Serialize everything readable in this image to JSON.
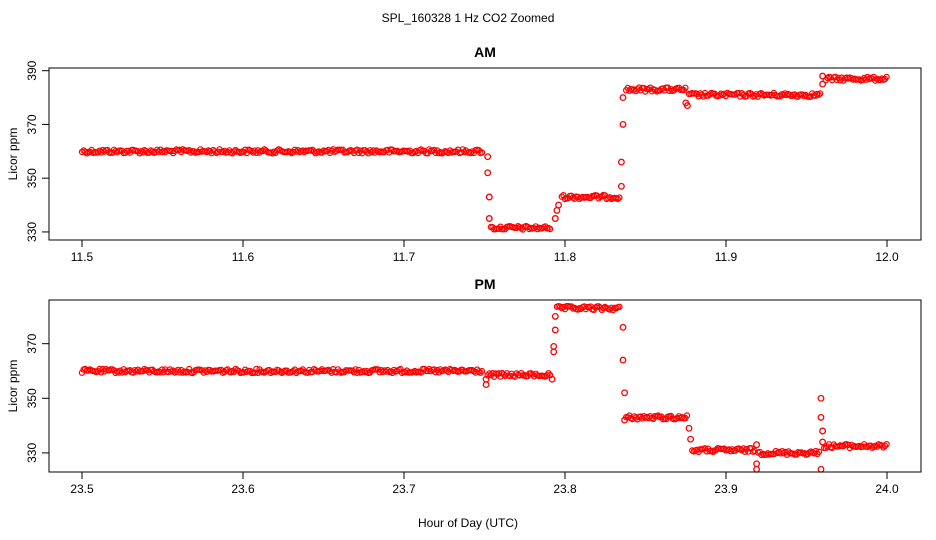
{
  "figure": {
    "title": "SPL_160328  1 Hz CO2 Zoomed",
    "xlabel": "Hour of Day (UTC)"
  },
  "chart_data": [
    {
      "type": "scatter",
      "panel": "AM",
      "title": "AM",
      "ylabel": "Licor ppm",
      "xlim": [
        11.5,
        12.0
      ],
      "ylim": [
        327,
        391
      ],
      "xticks": [
        "11.5",
        "11.6",
        "11.7",
        "11.8",
        "11.9",
        "12.0"
      ],
      "yticks": [
        "330",
        "350",
        "370",
        "390"
      ],
      "color": "#ff0000",
      "segments": [
        {
          "x": [
            11.5,
            11.749
          ],
          "y": 360
        },
        {
          "x": [
            11.754,
            11.791
          ],
          "y": 331.5
        },
        {
          "x": [
            11.798,
            11.834
          ],
          "y": 343
        },
        {
          "x": [
            11.838,
            11.875
          ],
          "y": 383
        },
        {
          "x": [
            11.877,
            11.959
          ],
          "y": 381
        },
        {
          "x": [
            11.962,
            12.0
          ],
          "y": 387
        }
      ],
      "transition_points": [
        {
          "x": 11.752,
          "y": 358
        },
        {
          "x": 11.752,
          "y": 352
        },
        {
          "x": 11.753,
          "y": 343
        },
        {
          "x": 11.753,
          "y": 335
        },
        {
          "x": 11.794,
          "y": 335
        },
        {
          "x": 11.795,
          "y": 338
        },
        {
          "x": 11.796,
          "y": 340
        },
        {
          "x": 11.835,
          "y": 347
        },
        {
          "x": 11.835,
          "y": 356
        },
        {
          "x": 11.836,
          "y": 370
        },
        {
          "x": 11.836,
          "y": 380
        },
        {
          "x": 11.875,
          "y": 378
        },
        {
          "x": 11.876,
          "y": 377
        },
        {
          "x": 11.96,
          "y": 385
        },
        {
          "x": 11.96,
          "y": 388
        }
      ]
    },
    {
      "type": "scatter",
      "panel": "PM",
      "title": "PM",
      "ylabel": "Licor ppm",
      "xlim": [
        23.5,
        24.0
      ],
      "ylim": [
        323,
        386
      ],
      "xticks": [
        "23.5",
        "23.6",
        "23.7",
        "23.8",
        "23.9",
        "24.0"
      ],
      "yticks": [
        "330",
        "350",
        "370"
      ],
      "color": "#ff0000",
      "segments": [
        {
          "x": [
            23.5,
            23.749
          ],
          "y": 360
        },
        {
          "x": [
            23.752,
            23.791
          ],
          "y": 358.5
        },
        {
          "x": [
            23.795,
            23.834
          ],
          "y": 383
        },
        {
          "x": [
            23.838,
            23.876
          ],
          "y": 343
        },
        {
          "x": [
            23.879,
            23.918
          ],
          "y": 331
        },
        {
          "x": [
            23.92,
            23.958
          ],
          "y": 330
        },
        {
          "x": [
            23.961,
            24.0
          ],
          "y": 332.5
        }
      ],
      "transition_points": [
        {
          "x": 23.751,
          "y": 355
        },
        {
          "x": 23.751,
          "y": 357
        },
        {
          "x": 23.792,
          "y": 357
        },
        {
          "x": 23.793,
          "y": 367
        },
        {
          "x": 23.793,
          "y": 369
        },
        {
          "x": 23.794,
          "y": 375
        },
        {
          "x": 23.794,
          "y": 380
        },
        {
          "x": 23.836,
          "y": 376
        },
        {
          "x": 23.836,
          "y": 364
        },
        {
          "x": 23.837,
          "y": 352
        },
        {
          "x": 23.837,
          "y": 342
        },
        {
          "x": 23.877,
          "y": 339
        },
        {
          "x": 23.878,
          "y": 335
        },
        {
          "x": 23.919,
          "y": 333
        },
        {
          "x": 23.919,
          "y": 326
        },
        {
          "x": 23.919,
          "y": 324
        },
        {
          "x": 23.959,
          "y": 350
        },
        {
          "x": 23.959,
          "y": 343
        },
        {
          "x": 23.96,
          "y": 338
        },
        {
          "x": 23.96,
          "y": 334
        },
        {
          "x": 23.959,
          "y": 324
        }
      ]
    }
  ]
}
